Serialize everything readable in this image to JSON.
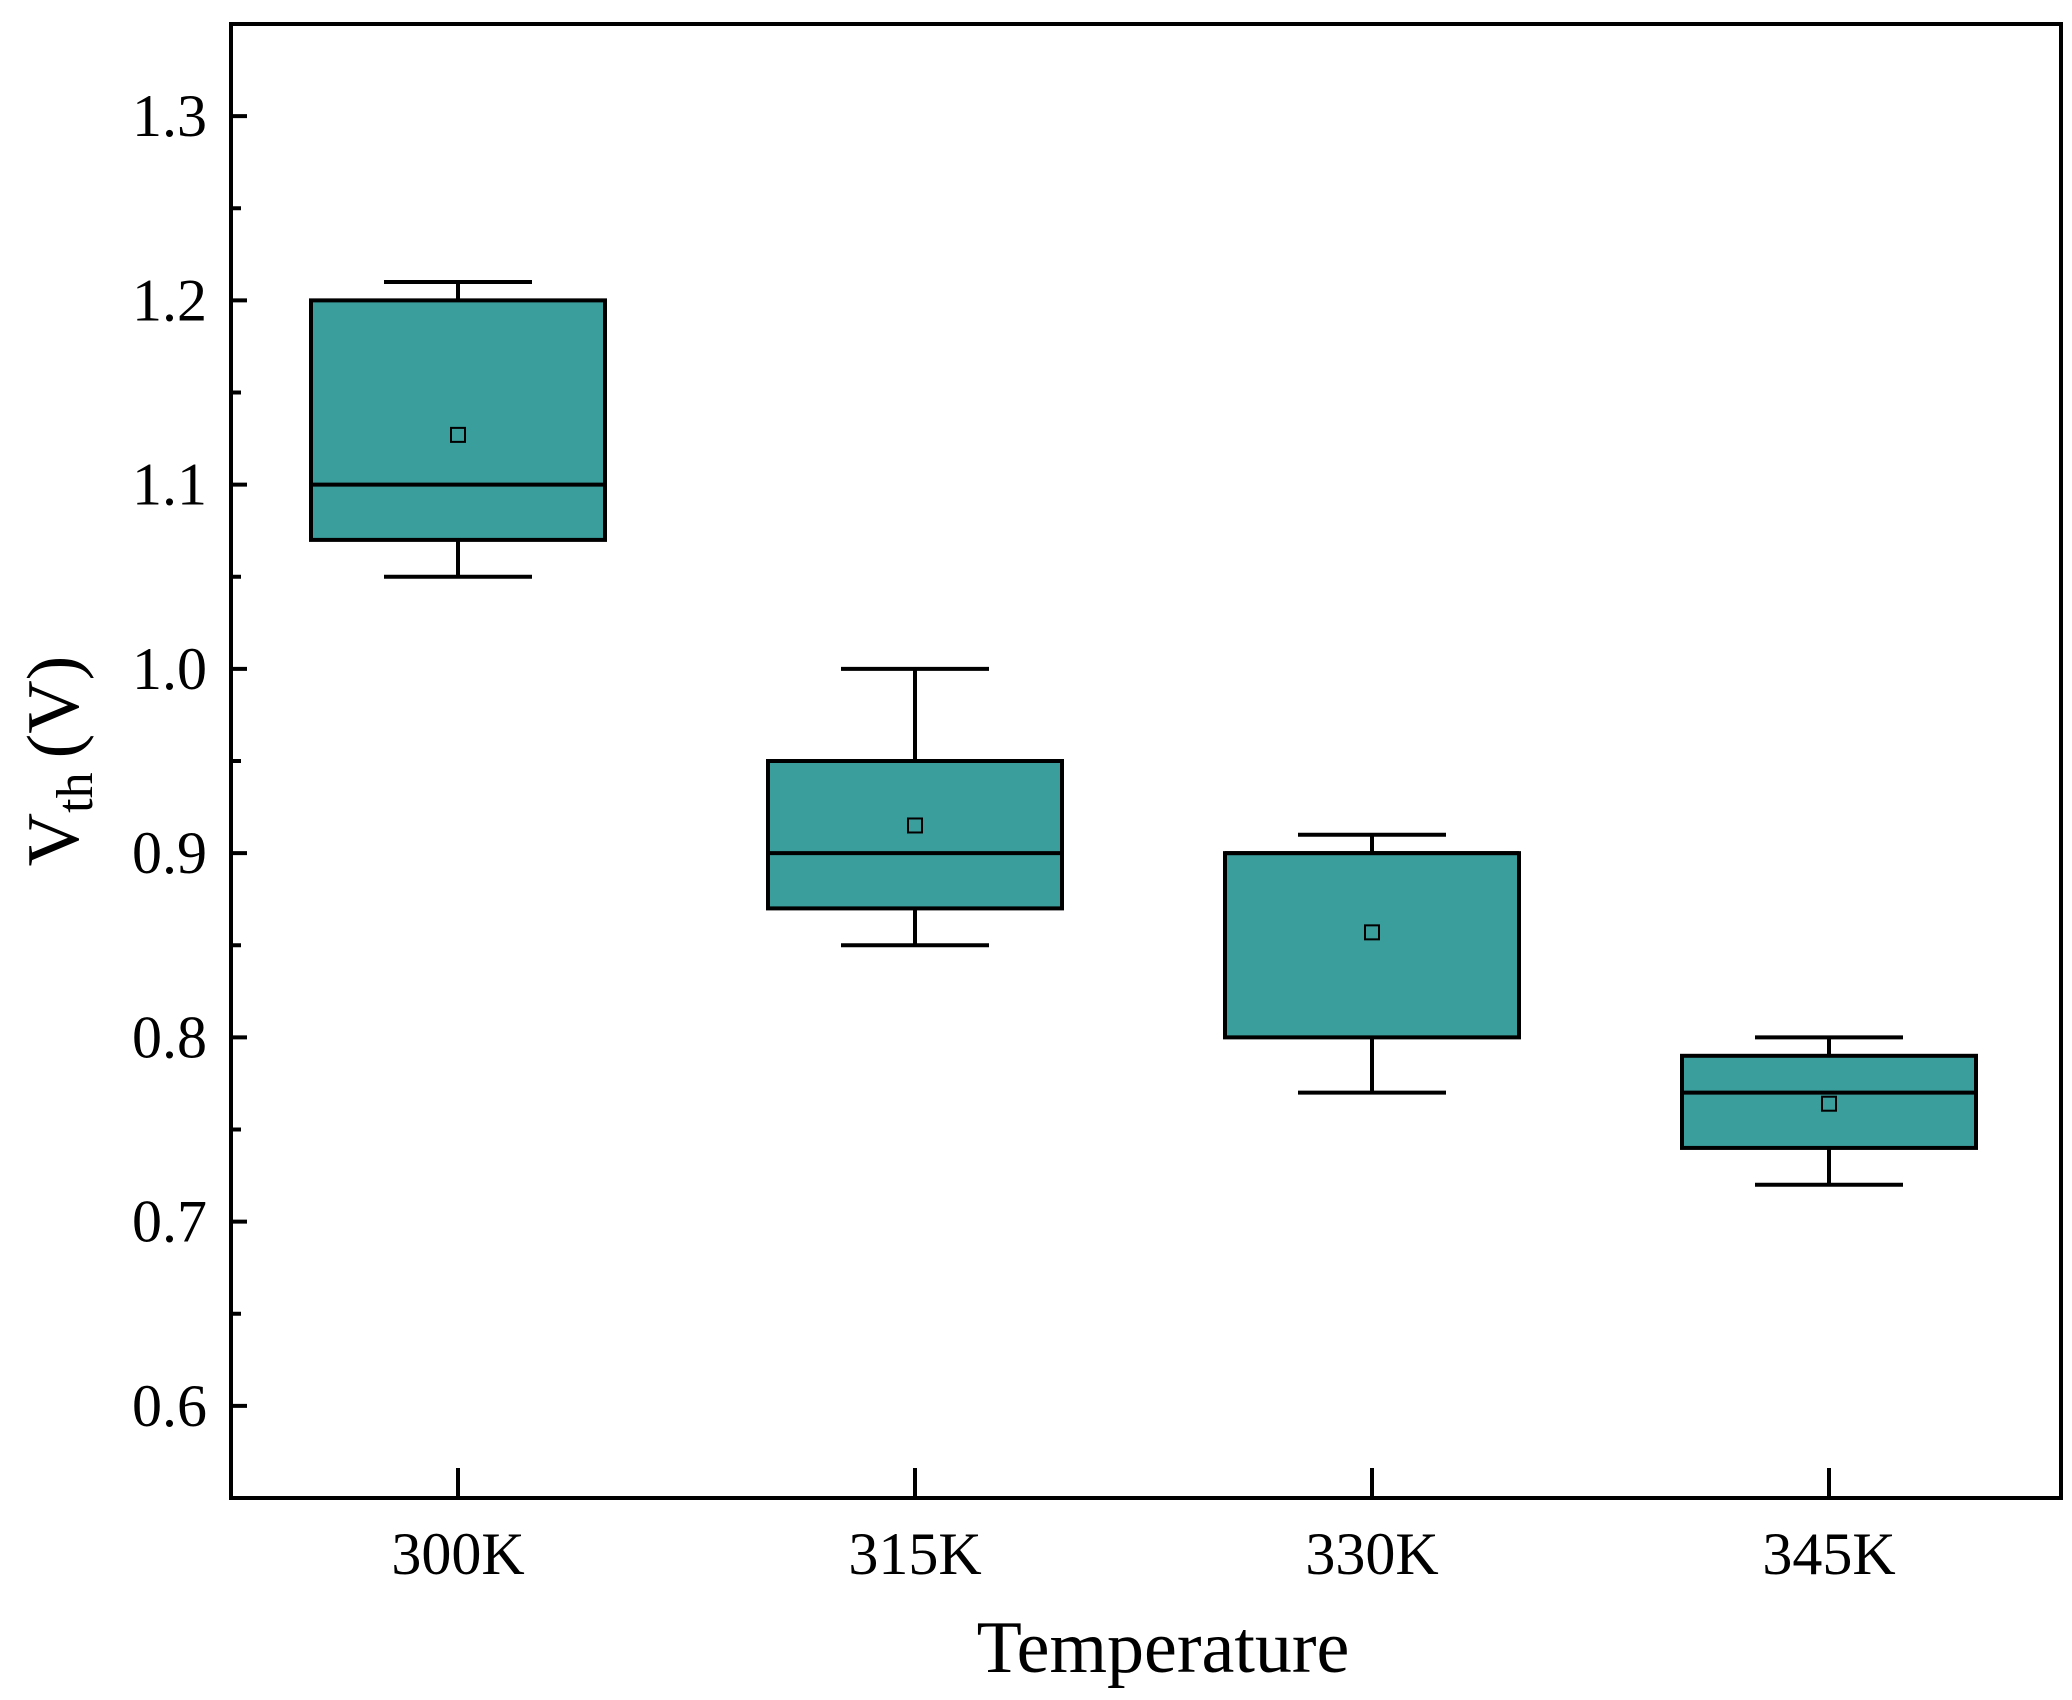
{
  "chart_data": {
    "type": "box",
    "xlabel": "Temperature",
    "ylabel": {
      "main": "V",
      "subscript": "th",
      "unit": "(V)"
    },
    "ylim": [
      0.55,
      1.35
    ],
    "yticks": [
      "0.6",
      "0.7",
      "0.8",
      "0.9",
      "1.0",
      "1.1",
      "1.2",
      "1.3"
    ],
    "categories": [
      "300K",
      "315K",
      "330K",
      "345K"
    ],
    "series": [
      {
        "name": "300K",
        "whisker_low": 1.05,
        "q1": 1.07,
        "median": 1.1,
        "q3": 1.2,
        "whisker_high": 1.21,
        "mean": 1.127
      },
      {
        "name": "315K",
        "whisker_low": 0.85,
        "q1": 0.87,
        "median": 0.9,
        "q3": 0.95,
        "whisker_high": 1.0,
        "mean": 0.915
      },
      {
        "name": "330K",
        "whisker_low": 0.77,
        "q1": 0.8,
        "median": 0.9,
        "q3": 0.9,
        "whisker_high": 0.91,
        "mean": 0.857
      },
      {
        "name": "345K",
        "whisker_low": 0.72,
        "q1": 0.74,
        "median": 0.77,
        "q3": 0.79,
        "whisker_high": 0.8,
        "mean": 0.764
      }
    ],
    "box_color": "#3a9e9c",
    "line_color": "#000000",
    "grid": false
  }
}
